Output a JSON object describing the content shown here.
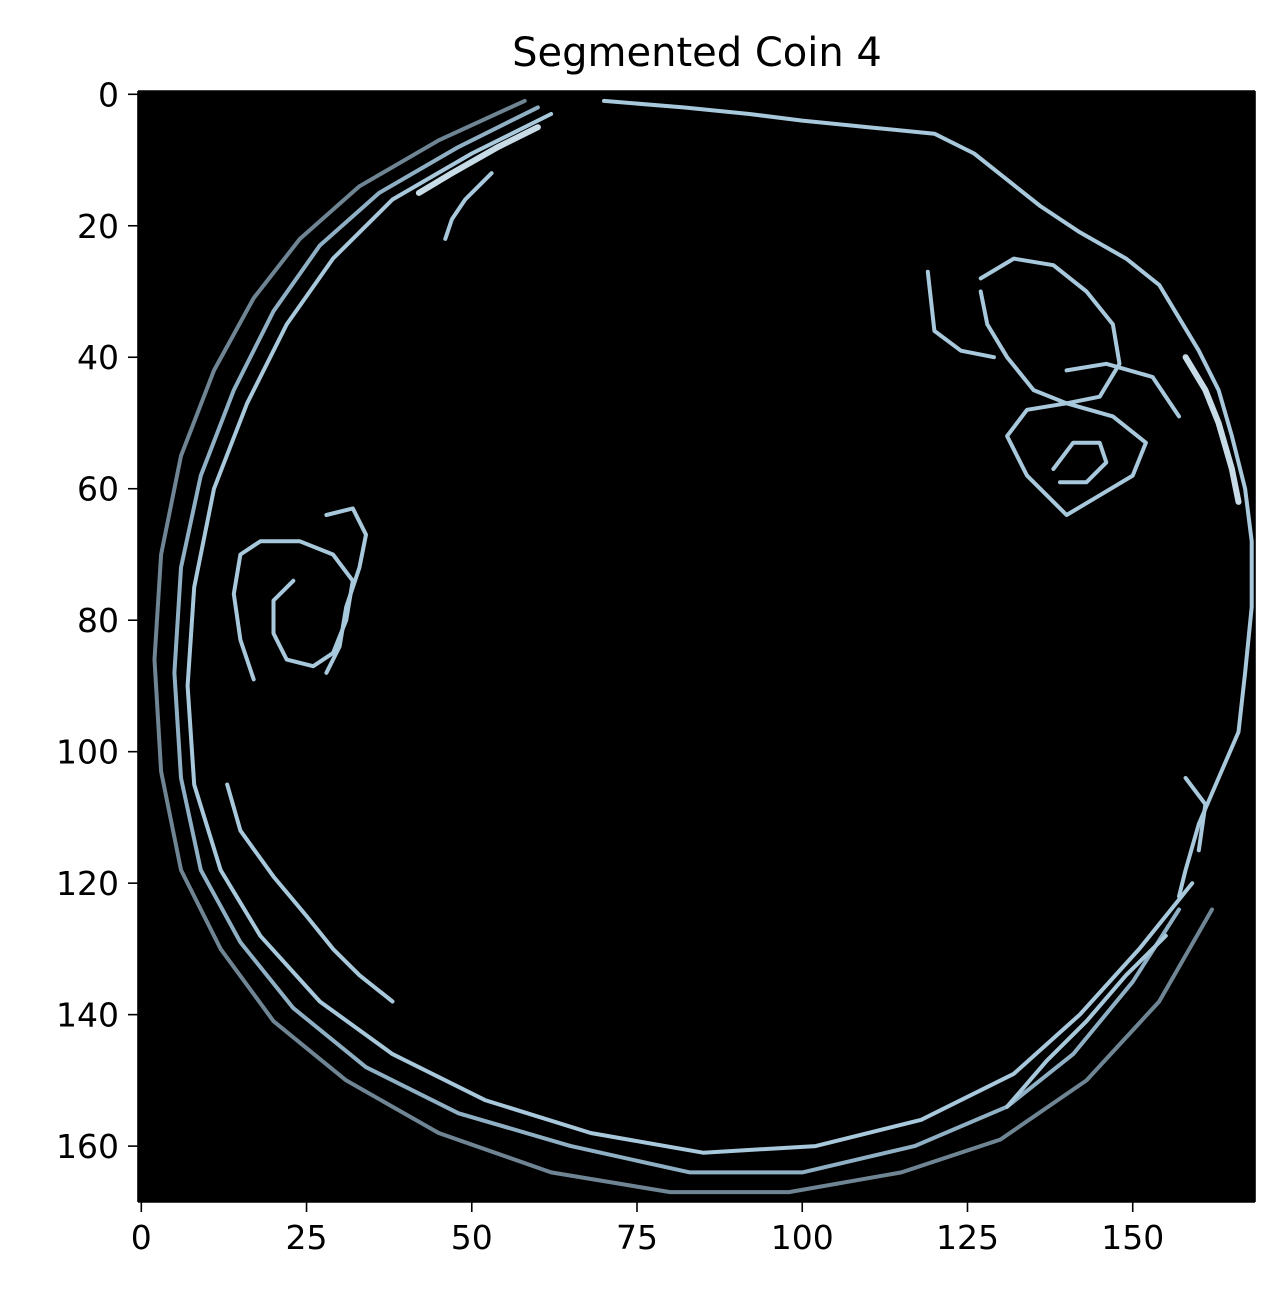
{
  "chart_data": {
    "type": "image",
    "title": "Segmented Coin 4",
    "xlabel": "",
    "ylabel": "",
    "image_size": [
      169,
      169
    ],
    "xlim": [
      -0.5,
      168.5
    ],
    "ylim": [
      168.5,
      -0.5
    ],
    "x_ticks": [
      0,
      25,
      50,
      75,
      100,
      125,
      150
    ],
    "x_tick_labels": [
      "0",
      "25",
      "50",
      "75",
      "100",
      "125",
      "150"
    ],
    "y_ticks": [
      0,
      20,
      40,
      60,
      80,
      100,
      120,
      140,
      160
    ],
    "y_tick_labels": [
      "0",
      "20",
      "40",
      "60",
      "80",
      "100",
      "120",
      "140",
      "160"
    ],
    "grid": false,
    "background_color": "#000000",
    "edge_colors": [
      "#a8c8dc",
      "#8fb0c4",
      "#6f8594",
      "#c8dce8"
    ],
    "edge_strokes": [
      {
        "tone": 2,
        "points": [
          [
            58,
            1
          ],
          [
            45,
            7
          ],
          [
            33,
            14
          ],
          [
            24,
            22
          ],
          [
            17,
            31
          ],
          [
            11,
            42
          ],
          [
            6,
            55
          ],
          [
            3,
            70
          ],
          [
            2,
            86
          ],
          [
            3,
            103
          ],
          [
            6,
            118
          ],
          [
            12,
            130
          ],
          [
            20,
            141
          ],
          [
            31,
            150
          ],
          [
            45,
            158
          ],
          [
            62,
            164
          ],
          [
            80,
            167
          ],
          [
            98,
            167
          ],
          [
            115,
            164
          ],
          [
            130,
            159
          ],
          [
            143,
            150
          ],
          [
            154,
            138
          ],
          [
            162,
            124
          ]
        ]
      },
      {
        "tone": 0,
        "points": [
          [
            62,
            3
          ],
          [
            50,
            9
          ],
          [
            38,
            16
          ],
          [
            29,
            25
          ],
          [
            22,
            35
          ],
          [
            16,
            47
          ],
          [
            11,
            60
          ],
          [
            8,
            75
          ],
          [
            7,
            90
          ],
          [
            8,
            105
          ],
          [
            12,
            118
          ],
          [
            18,
            128
          ],
          [
            27,
            138
          ],
          [
            38,
            146
          ],
          [
            52,
            153
          ],
          [
            68,
            158
          ],
          [
            85,
            161
          ],
          [
            102,
            160
          ],
          [
            118,
            156
          ],
          [
            132,
            149
          ],
          [
            142,
            140
          ],
          [
            151,
            130
          ],
          [
            159,
            120
          ]
        ]
      },
      {
        "tone": 1,
        "points": [
          [
            60,
            2
          ],
          [
            48,
            8
          ],
          [
            36,
            15
          ],
          [
            27,
            23
          ],
          [
            20,
            33
          ],
          [
            14,
            45
          ],
          [
            9,
            58
          ],
          [
            6,
            72
          ],
          [
            5,
            88
          ],
          [
            6,
            104
          ],
          [
            9,
            118
          ],
          [
            15,
            129
          ],
          [
            23,
            139
          ],
          [
            34,
            148
          ],
          [
            48,
            155
          ],
          [
            65,
            160
          ],
          [
            83,
            164
          ],
          [
            100,
            164
          ],
          [
            117,
            160
          ],
          [
            131,
            154
          ],
          [
            141,
            146
          ],
          [
            150,
            135
          ],
          [
            157,
            124
          ]
        ]
      },
      {
        "tone": 0,
        "points": [
          [
            70,
            1
          ],
          [
            82,
            2
          ],
          [
            92,
            3
          ],
          [
            100,
            4
          ],
          [
            110,
            5
          ],
          [
            120,
            6
          ],
          [
            126,
            9
          ],
          [
            131,
            13
          ],
          [
            136,
            17
          ],
          [
            142,
            21
          ],
          [
            149,
            25
          ],
          [
            154,
            29
          ],
          [
            157,
            34
          ],
          [
            160,
            39
          ],
          [
            163,
            45
          ],
          [
            165,
            52
          ],
          [
            167,
            60
          ],
          [
            168,
            68
          ],
          [
            168,
            78
          ],
          [
            167,
            88
          ],
          [
            166,
            97
          ],
          [
            163,
            104
          ],
          [
            160,
            111
          ],
          [
            158,
            118
          ],
          [
            157,
            122
          ]
        ]
      },
      {
        "tone": 3,
        "points": [
          [
            42,
            15
          ],
          [
            47,
            12
          ],
          [
            54,
            8
          ],
          [
            60,
            5
          ]
        ]
      },
      {
        "tone": 3,
        "points": [
          [
            158,
            40
          ],
          [
            161,
            45
          ],
          [
            163,
            50
          ],
          [
            165,
            57
          ],
          [
            166,
            62
          ]
        ]
      },
      {
        "tone": 0,
        "points": [
          [
            53,
            12
          ],
          [
            49,
            16
          ],
          [
            47,
            19
          ],
          [
            46,
            22
          ]
        ]
      },
      {
        "tone": 0,
        "points": [
          [
            17,
            89
          ],
          [
            15,
            83
          ],
          [
            14,
            76
          ],
          [
            15,
            70
          ],
          [
            18,
            68
          ],
          [
            24,
            68
          ],
          [
            29,
            70
          ],
          [
            32,
            74
          ],
          [
            31,
            80
          ],
          [
            29,
            85
          ],
          [
            26,
            87
          ],
          [
            22,
            86
          ],
          [
            20,
            82
          ],
          [
            20,
            77
          ],
          [
            23,
            74
          ]
        ]
      },
      {
        "tone": 0,
        "points": [
          [
            28,
            64
          ],
          [
            32,
            63
          ],
          [
            34,
            67
          ],
          [
            33,
            72
          ],
          [
            31,
            78
          ],
          [
            30,
            84
          ],
          [
            28,
            88
          ]
        ]
      },
      {
        "tone": 0,
        "points": [
          [
            13,
            105
          ],
          [
            15,
            112
          ],
          [
            20,
            119
          ],
          [
            25,
            125
          ],
          [
            29,
            130
          ],
          [
            33,
            134
          ],
          [
            38,
            138
          ]
        ]
      },
      {
        "tone": 0,
        "points": [
          [
            140,
            64
          ],
          [
            134,
            58
          ],
          [
            131,
            52
          ],
          [
            134,
            48
          ],
          [
            140,
            47
          ],
          [
            147,
            49
          ],
          [
            152,
            53
          ],
          [
            150,
            58
          ],
          [
            145,
            61
          ],
          [
            140,
            64
          ]
        ]
      },
      {
        "tone": 0,
        "points": [
          [
            138,
            57
          ],
          [
            141,
            53
          ],
          [
            145,
            53
          ],
          [
            146,
            56
          ],
          [
            143,
            59
          ],
          [
            139,
            59
          ]
        ]
      },
      {
        "tone": 0,
        "points": [
          [
            127,
            28
          ],
          [
            132,
            25
          ],
          [
            138,
            26
          ],
          [
            143,
            30
          ],
          [
            147,
            35
          ],
          [
            148,
            41
          ],
          [
            145,
            46
          ],
          [
            140,
            47
          ],
          [
            135,
            45
          ],
          [
            131,
            40
          ],
          [
            128,
            35
          ],
          [
            127,
            30
          ]
        ]
      },
      {
        "tone": 0,
        "points": [
          [
            119,
            27
          ],
          [
            120,
            36
          ],
          [
            124,
            39
          ],
          [
            129,
            40
          ]
        ]
      },
      {
        "tone": 0,
        "points": [
          [
            140,
            42
          ],
          [
            146,
            41
          ],
          [
            153,
            43
          ],
          [
            157,
            49
          ]
        ]
      },
      {
        "tone": 0,
        "points": [
          [
            131,
            154
          ],
          [
            137,
            147
          ],
          [
            143,
            141
          ],
          [
            149,
            134
          ],
          [
            155,
            128
          ]
        ]
      },
      {
        "tone": 0,
        "points": [
          [
            158,
            104
          ],
          [
            161,
            108
          ],
          [
            160,
            115
          ]
        ]
      }
    ]
  }
}
